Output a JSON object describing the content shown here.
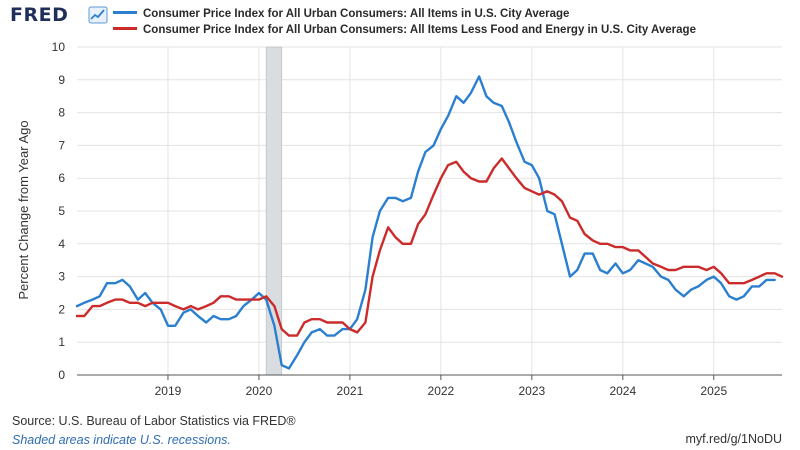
{
  "logo": {
    "text": "FRED",
    "icon": "trend-chart-icon"
  },
  "chart_data": {
    "type": "line",
    "title": "",
    "xlabel": "",
    "ylabel": "Percent Change from Year Ago",
    "ylim": [
      0,
      10
    ],
    "yticks": [
      0,
      1,
      2,
      3,
      4,
      5,
      6,
      7,
      8,
      9,
      10
    ],
    "xlim": [
      2018.0,
      2025.75
    ],
    "xticks": [
      2019,
      2020,
      2021,
      2022,
      2023,
      2024,
      2025
    ],
    "xtick_labels": [
      "2019",
      "2020",
      "2021",
      "2022",
      "2023",
      "2024",
      "2025"
    ],
    "grid": true,
    "legend": "top",
    "recessions": [
      {
        "start": 2020.08,
        "end": 2020.25
      }
    ],
    "series": [
      {
        "name": "Consumer Price Index for All Urban Consumers: All Items in U.S. City Average",
        "color": "#2b7fd0",
        "points": [
          [
            2018.0,
            2.1
          ],
          [
            2018.08,
            2.2
          ],
          [
            2018.17,
            2.3
          ],
          [
            2018.25,
            2.4
          ],
          [
            2018.33,
            2.8
          ],
          [
            2018.42,
            2.8
          ],
          [
            2018.5,
            2.9
          ],
          [
            2018.58,
            2.7
          ],
          [
            2018.67,
            2.3
          ],
          [
            2018.75,
            2.5
          ],
          [
            2018.83,
            2.2
          ],
          [
            2018.92,
            2.0
          ],
          [
            2019.0,
            1.5
          ],
          [
            2019.08,
            1.5
          ],
          [
            2019.17,
            1.9
          ],
          [
            2019.25,
            2.0
          ],
          [
            2019.33,
            1.8
          ],
          [
            2019.42,
            1.6
          ],
          [
            2019.5,
            1.8
          ],
          [
            2019.58,
            1.7
          ],
          [
            2019.67,
            1.7
          ],
          [
            2019.75,
            1.8
          ],
          [
            2019.83,
            2.1
          ],
          [
            2019.92,
            2.3
          ],
          [
            2020.0,
            2.5
          ],
          [
            2020.08,
            2.3
          ],
          [
            2020.17,
            1.5
          ],
          [
            2020.25,
            0.3
          ],
          [
            2020.33,
            0.2
          ],
          [
            2020.42,
            0.6
          ],
          [
            2020.5,
            1.0
          ],
          [
            2020.58,
            1.3
          ],
          [
            2020.67,
            1.4
          ],
          [
            2020.75,
            1.2
          ],
          [
            2020.83,
            1.2
          ],
          [
            2020.92,
            1.4
          ],
          [
            2021.0,
            1.4
          ],
          [
            2021.08,
            1.7
          ],
          [
            2021.17,
            2.6
          ],
          [
            2021.25,
            4.2
          ],
          [
            2021.33,
            5.0
          ],
          [
            2021.42,
            5.4
          ],
          [
            2021.5,
            5.4
          ],
          [
            2021.58,
            5.3
          ],
          [
            2021.67,
            5.4
          ],
          [
            2021.75,
            6.2
          ],
          [
            2021.83,
            6.8
          ],
          [
            2021.92,
            7.0
          ],
          [
            2022.0,
            7.5
          ],
          [
            2022.08,
            7.9
          ],
          [
            2022.17,
            8.5
          ],
          [
            2022.25,
            8.3
          ],
          [
            2022.33,
            8.6
          ],
          [
            2022.42,
            9.1
          ],
          [
            2022.5,
            8.5
          ],
          [
            2022.58,
            8.3
          ],
          [
            2022.67,
            8.2
          ],
          [
            2022.75,
            7.7
          ],
          [
            2022.83,
            7.1
          ],
          [
            2022.92,
            6.5
          ],
          [
            2023.0,
            6.4
          ],
          [
            2023.08,
            6.0
          ],
          [
            2023.17,
            5.0
          ],
          [
            2023.25,
            4.9
          ],
          [
            2023.33,
            4.0
          ],
          [
            2023.42,
            3.0
          ],
          [
            2023.5,
            3.2
          ],
          [
            2023.58,
            3.7
          ],
          [
            2023.67,
            3.7
          ],
          [
            2023.75,
            3.2
          ],
          [
            2023.83,
            3.1
          ],
          [
            2023.92,
            3.4
          ],
          [
            2024.0,
            3.1
          ],
          [
            2024.08,
            3.2
          ],
          [
            2024.17,
            3.5
          ],
          [
            2024.25,
            3.4
          ],
          [
            2024.33,
            3.3
          ],
          [
            2024.42,
            3.0
          ],
          [
            2024.5,
            2.9
          ],
          [
            2024.58,
            2.6
          ],
          [
            2024.67,
            2.4
          ],
          [
            2024.75,
            2.6
          ],
          [
            2024.83,
            2.7
          ],
          [
            2024.92,
            2.9
          ],
          [
            2025.0,
            3.0
          ],
          [
            2025.08,
            2.8
          ],
          [
            2025.17,
            2.4
          ],
          [
            2025.25,
            2.3
          ],
          [
            2025.33,
            2.4
          ],
          [
            2025.42,
            2.7
          ],
          [
            2025.5,
            2.7
          ],
          [
            2025.58,
            2.9
          ],
          [
            2025.67,
            2.9
          ]
        ]
      },
      {
        "name": "Consumer Price Index for All Urban Consumers: All Items Less Food and Energy in U.S. City Average",
        "color": "#cc2b2b",
        "points": [
          [
            2018.0,
            1.8
          ],
          [
            2018.08,
            1.8
          ],
          [
            2018.17,
            2.1
          ],
          [
            2018.25,
            2.1
          ],
          [
            2018.33,
            2.2
          ],
          [
            2018.42,
            2.3
          ],
          [
            2018.5,
            2.3
          ],
          [
            2018.58,
            2.2
          ],
          [
            2018.67,
            2.2
          ],
          [
            2018.75,
            2.1
          ],
          [
            2018.83,
            2.2
          ],
          [
            2018.92,
            2.2
          ],
          [
            2019.0,
            2.2
          ],
          [
            2019.08,
            2.1
          ],
          [
            2019.17,
            2.0
          ],
          [
            2019.25,
            2.1
          ],
          [
            2019.33,
            2.0
          ],
          [
            2019.42,
            2.1
          ],
          [
            2019.5,
            2.2
          ],
          [
            2019.58,
            2.4
          ],
          [
            2019.67,
            2.4
          ],
          [
            2019.75,
            2.3
          ],
          [
            2019.83,
            2.3
          ],
          [
            2019.92,
            2.3
          ],
          [
            2020.0,
            2.3
          ],
          [
            2020.08,
            2.4
          ],
          [
            2020.17,
            2.1
          ],
          [
            2020.25,
            1.4
          ],
          [
            2020.33,
            1.2
          ],
          [
            2020.42,
            1.2
          ],
          [
            2020.5,
            1.6
          ],
          [
            2020.58,
            1.7
          ],
          [
            2020.67,
            1.7
          ],
          [
            2020.75,
            1.6
          ],
          [
            2020.83,
            1.6
          ],
          [
            2020.92,
            1.6
          ],
          [
            2021.0,
            1.4
          ],
          [
            2021.08,
            1.3
          ],
          [
            2021.17,
            1.6
          ],
          [
            2021.25,
            3.0
          ],
          [
            2021.33,
            3.8
          ],
          [
            2021.42,
            4.5
          ],
          [
            2021.5,
            4.2
          ],
          [
            2021.58,
            4.0
          ],
          [
            2021.67,
            4.0
          ],
          [
            2021.75,
            4.6
          ],
          [
            2021.83,
            4.9
          ],
          [
            2021.92,
            5.5
          ],
          [
            2022.0,
            6.0
          ],
          [
            2022.08,
            6.4
          ],
          [
            2022.17,
            6.5
          ],
          [
            2022.25,
            6.2
          ],
          [
            2022.33,
            6.0
          ],
          [
            2022.42,
            5.9
          ],
          [
            2022.5,
            5.9
          ],
          [
            2022.58,
            6.3
          ],
          [
            2022.67,
            6.6
          ],
          [
            2022.75,
            6.3
          ],
          [
            2022.83,
            6.0
          ],
          [
            2022.92,
            5.7
          ],
          [
            2023.0,
            5.6
          ],
          [
            2023.08,
            5.5
          ],
          [
            2023.17,
            5.6
          ],
          [
            2023.25,
            5.5
          ],
          [
            2023.33,
            5.3
          ],
          [
            2023.42,
            4.8
          ],
          [
            2023.5,
            4.7
          ],
          [
            2023.58,
            4.3
          ],
          [
            2023.67,
            4.1
          ],
          [
            2023.75,
            4.0
          ],
          [
            2023.83,
            4.0
          ],
          [
            2023.92,
            3.9
          ],
          [
            2024.0,
            3.9
          ],
          [
            2024.08,
            3.8
          ],
          [
            2024.17,
            3.8
          ],
          [
            2024.25,
            3.6
          ],
          [
            2024.33,
            3.4
          ],
          [
            2024.42,
            3.3
          ],
          [
            2024.5,
            3.2
          ],
          [
            2024.58,
            3.2
          ],
          [
            2024.67,
            3.3
          ],
          [
            2024.75,
            3.3
          ],
          [
            2024.83,
            3.3
          ],
          [
            2024.92,
            3.2
          ],
          [
            2025.0,
            3.3
          ],
          [
            2025.08,
            3.1
          ],
          [
            2025.17,
            2.8
          ],
          [
            2025.25,
            2.8
          ],
          [
            2025.33,
            2.8
          ],
          [
            2025.42,
            2.9
          ],
          [
            2025.5,
            3.0
          ],
          [
            2025.58,
            3.1
          ],
          [
            2025.67,
            3.1
          ],
          [
            2025.75,
            3.0
          ]
        ]
      }
    ]
  },
  "footer": {
    "source": "Source: U.S. Bureau of Labor Statistics via FRED®",
    "note": "Shaded areas indicate U.S. recessions.",
    "url": "myf.red/g/1NoDU"
  }
}
